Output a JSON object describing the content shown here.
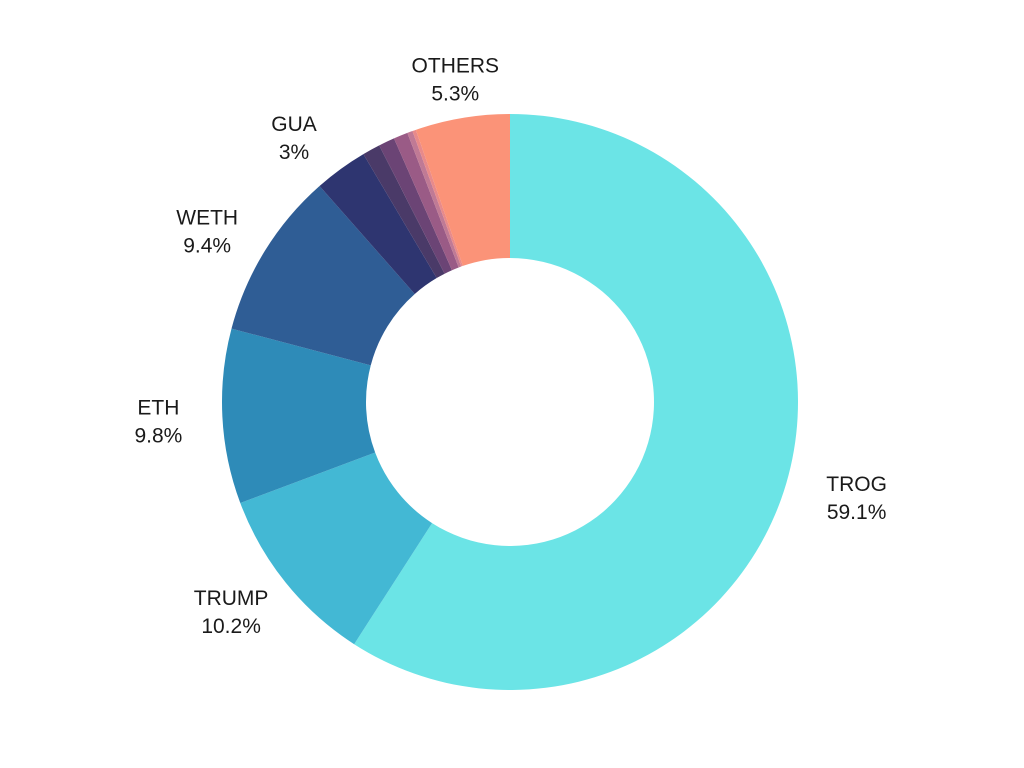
{
  "chart_data": {
    "type": "pie",
    "donut": true,
    "title": "",
    "legend": "none",
    "slices": [
      {
        "name": "TROG",
        "value": 59.1,
        "label": "TROG",
        "value_label": "59.1%",
        "color": "#6BE4E6",
        "labeled": true,
        "label_side": "right"
      },
      {
        "name": "TRUMP",
        "value": 10.2,
        "label": "TRUMP",
        "value_label": "10.2%",
        "color": "#43B8D4",
        "labeled": true,
        "label_side": "left"
      },
      {
        "name": "ETH",
        "value": 9.8,
        "label": "ETH",
        "value_label": "9.8%",
        "color": "#2E8BB8",
        "labeled": true,
        "label_side": "left"
      },
      {
        "name": "WETH",
        "value": 9.4,
        "label": "WETH",
        "value_label": "9.4%",
        "color": "#2F5D95",
        "labeled": true,
        "label_side": "left"
      },
      {
        "name": "GUA",
        "value": 3.0,
        "label": "GUA",
        "value_label": "3%",
        "color": "#2E3570",
        "labeled": true,
        "label_side": "left"
      },
      {
        "name": "",
        "value": 1.0,
        "label": "",
        "value_label": "",
        "color": "#4A3A68",
        "labeled": false
      },
      {
        "name": "",
        "value": 0.9,
        "label": "",
        "value_label": "",
        "color": "#6B4475",
        "labeled": false
      },
      {
        "name": "",
        "value": 0.8,
        "label": "",
        "value_label": "",
        "color": "#9A5B86",
        "labeled": false
      },
      {
        "name": "",
        "value": 0.3,
        "label": "",
        "value_label": "",
        "color": "#C07A95",
        "labeled": false
      },
      {
        "name": "",
        "value": 0.2,
        "label": "",
        "value_label": "",
        "color": "#E88A8A",
        "labeled": false
      },
      {
        "name": "OTHERS",
        "value": 5.3,
        "label": "OTHERS",
        "value_label": "5.3%",
        "color": "#FB9378",
        "labeled": true,
        "label_side": "top"
      }
    ]
  }
}
